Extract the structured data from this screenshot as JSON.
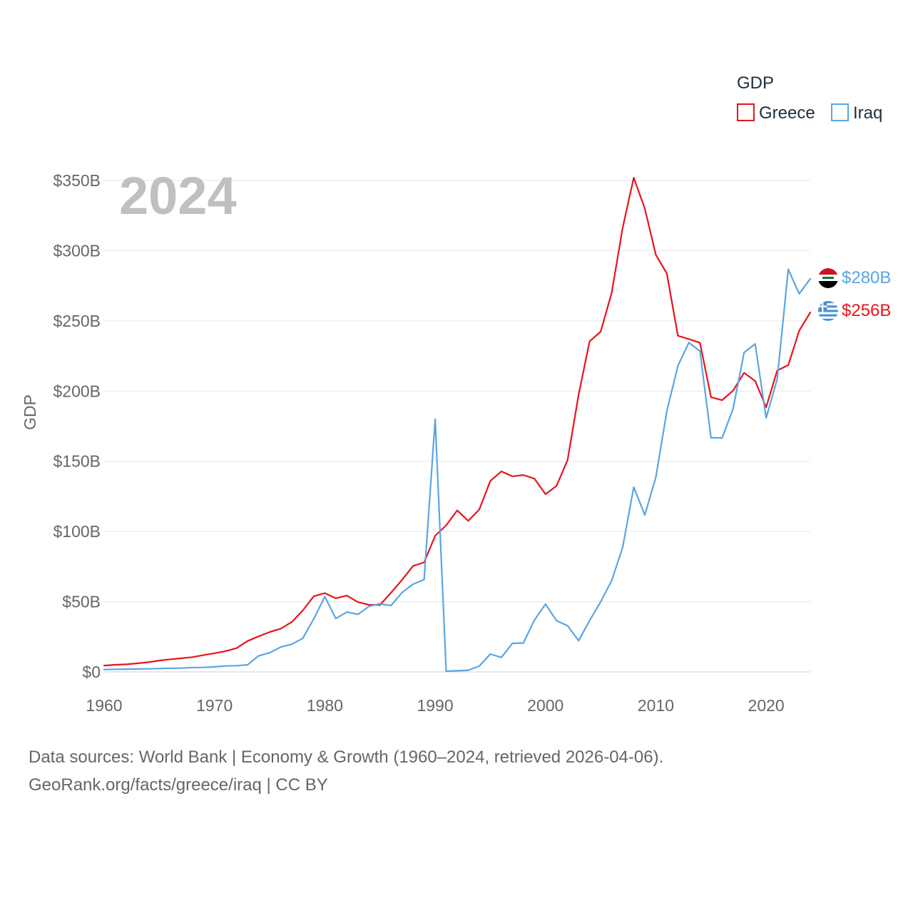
{
  "chart_data": {
    "type": "line",
    "year_watermark": "2024",
    "legend_title": "GDP",
    "ylabel": "GDP",
    "xlabel": "",
    "xlim": [
      1960,
      2024
    ],
    "ylim": [
      0,
      350
    ],
    "y_unit": "billions USD",
    "y_ticks": [
      0,
      50,
      100,
      150,
      200,
      250,
      300,
      350
    ],
    "y_tick_labels": [
      "$0",
      "$50B",
      "$100B",
      "$150B",
      "$200B",
      "$250B",
      "$300B",
      "$350B"
    ],
    "x_ticks": [
      1960,
      1970,
      1980,
      1990,
      2000,
      2010,
      2020
    ],
    "x_tick_labels": [
      "1960",
      "1970",
      "1980",
      "1990",
      "2000",
      "2010",
      "2020"
    ],
    "grid": "horizontal",
    "legend_position": "top-right",
    "x": [
      1960,
      1961,
      1962,
      1963,
      1964,
      1965,
      1966,
      1967,
      1968,
      1969,
      1970,
      1971,
      1972,
      1973,
      1974,
      1975,
      1976,
      1977,
      1978,
      1979,
      1980,
      1981,
      1982,
      1983,
      1984,
      1985,
      1986,
      1987,
      1988,
      1989,
      1990,
      1991,
      1992,
      1993,
      1994,
      1995,
      1996,
      1997,
      1998,
      1999,
      2000,
      2001,
      2002,
      2003,
      2004,
      2005,
      2006,
      2007,
      2008,
      2009,
      2010,
      2011,
      2012,
      2013,
      2014,
      2015,
      2016,
      2017,
      2018,
      2019,
      2020,
      2021,
      2022,
      2023,
      2024
    ],
    "series": [
      {
        "name": "Greece",
        "color": "#e8141c",
        "end_label": "$256B",
        "flag": "greece-flag-icon",
        "values": [
          4.5,
          5.1,
          5.4,
          6.1,
          6.9,
          8.1,
          9.0,
          9.7,
          10.5,
          12.0,
          13.3,
          14.8,
          16.9,
          22.0,
          25.3,
          28.4,
          30.8,
          35.5,
          43.7,
          53.9,
          56.1,
          52.4,
          54.4,
          49.7,
          47.8,
          47.7,
          56.4,
          65.6,
          75.5,
          78.0,
          97.0,
          104.4,
          115.0,
          107.6,
          115.6,
          136.0,
          142.8,
          139.3,
          140.2,
          137.6,
          126.6,
          132.5,
          150.8,
          197.4,
          235.4,
          242.3,
          270.1,
          316.4,
          352.0,
          330.0,
          297.1,
          283.7,
          239.4,
          237.0,
          234.4,
          195.7,
          193.5,
          200.3,
          213.0,
          207.2,
          188.5,
          214.6,
          218.5,
          243.0,
          256.0
        ]
      },
      {
        "name": "Iraq",
        "color": "#5aa5e3",
        "end_label": "$280B",
        "flag": "iraq-flag-icon",
        "values": [
          1.7,
          1.9,
          2.0,
          2.1,
          2.2,
          2.4,
          2.6,
          2.7,
          3.1,
          3.2,
          3.6,
          4.2,
          4.4,
          5.1,
          11.5,
          13.6,
          17.7,
          19.7,
          23.9,
          37.8,
          53.6,
          38.0,
          42.6,
          41.0,
          46.7,
          48.5,
          47.3,
          56.6,
          62.5,
          65.8,
          180.0,
          0.5,
          0.8,
          1.2,
          4.1,
          12.7,
          10.3,
          20.3,
          20.6,
          37.0,
          48.3,
          36.5,
          32.9,
          22.2,
          36.6,
          49.9,
          65.1,
          88.8,
          131.6,
          111.7,
          138.5,
          185.7,
          218.0,
          234.6,
          228.4,
          166.8,
          166.6,
          187.2,
          227.4,
          233.6,
          180.9,
          208.5,
          286.7,
          269.3,
          280.0
        ]
      }
    ]
  },
  "source": {
    "line1": "Data sources: World Bank | Economy & Growth (1960–2024, retrieved 2026-04-06).",
    "line2": "GeoRank.org/facts/greece/iraq | CC BY"
  }
}
